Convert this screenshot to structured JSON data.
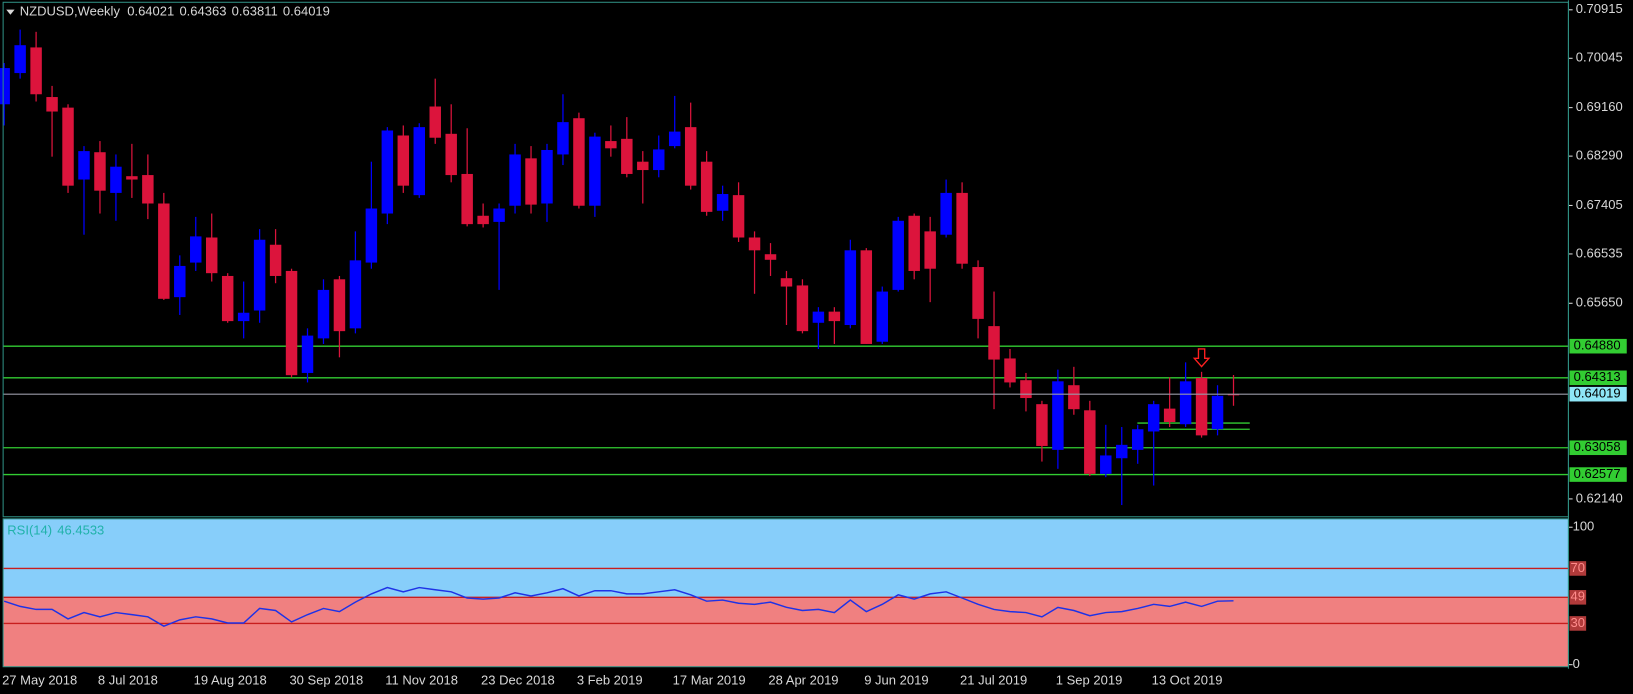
{
  "chart_data": [
    {
      "type": "candlestick",
      "title": "NZDUSD,Weekly",
      "categories": [
        "27 May 2018",
        null,
        null,
        null,
        null,
        null,
        "8 Jul 2018",
        null,
        null,
        null,
        null,
        null,
        "19 Aug 2018",
        null,
        null,
        null,
        null,
        null,
        "30 Sep 2018",
        null,
        null,
        null,
        null,
        null,
        "11 Nov 2018",
        null,
        null,
        null,
        null,
        null,
        "23 Dec 2018",
        null,
        null,
        null,
        null,
        null,
        "3 Feb 2019",
        null,
        null,
        null,
        null,
        null,
        "17 Mar 2019",
        null,
        null,
        null,
        null,
        null,
        "28 Apr 2019",
        null,
        null,
        null,
        null,
        null,
        "9 Jun 2019",
        null,
        null,
        null,
        null,
        null,
        "21 Jul 2019",
        null,
        null,
        null,
        null,
        null,
        "1 Sep 2019",
        null,
        null,
        null,
        null,
        null,
        "13 Oct 2019",
        null,
        null,
        null,
        null,
        null
      ],
      "open": [
        0.6922,
        0.6978,
        0.7024,
        0.6935,
        0.6916,
        0.6787,
        0.6836,
        0.6763,
        0.6793,
        0.6795,
        0.6744,
        0.6576,
        0.6638,
        0.6683,
        0.6614,
        0.6533,
        0.6552,
        0.667,
        0.6623,
        0.644,
        0.6502,
        0.6608,
        0.652,
        0.6638,
        0.6726,
        0.6866,
        0.6759,
        0.6918,
        0.6869,
        0.6797,
        0.6722,
        0.6711,
        0.674,
        0.6825,
        0.6744,
        0.6832,
        0.6897,
        0.674,
        0.6856,
        0.686,
        0.6819,
        0.6804,
        0.6847,
        0.6881,
        0.6819,
        0.6731,
        0.6759,
        0.6683,
        0.6653,
        0.661,
        0.6597,
        0.653,
        0.655,
        0.6526,
        0.666,
        0.6496,
        0.6589,
        0.6722,
        0.6694,
        0.6688,
        0.6763,
        0.663,
        0.6524,
        0.6466,
        0.6427,
        0.6384,
        0.6302,
        0.6418,
        0.6373,
        0.6259,
        0.6287,
        0.6302,
        0.6335,
        0.6376,
        0.6348,
        0.6431,
        0.6339,
        0.64021
      ],
      "high": [
        0.6996,
        0.7056,
        0.7052,
        0.6955,
        0.6922,
        0.6847,
        0.6856,
        0.6832,
        0.6851,
        0.6832,
        0.6763,
        0.6651,
        0.672,
        0.6726,
        0.6619,
        0.6604,
        0.6698,
        0.6698,
        0.6627,
        0.652,
        0.6608,
        0.6614,
        0.6694,
        0.6819,
        0.6881,
        0.6884,
        0.6888,
        0.6968,
        0.6922,
        0.6879,
        0.6744,
        0.6744,
        0.6851,
        0.6847,
        0.6851,
        0.694,
        0.6907,
        0.6871,
        0.6884,
        0.6899,
        0.6838,
        0.6866,
        0.6937,
        0.6925,
        0.6838,
        0.6776,
        0.6782,
        0.6694,
        0.6673,
        0.6623,
        0.6608,
        0.6558,
        0.6558,
        0.6679,
        0.6664,
        0.6595,
        0.672,
        0.6726,
        0.672,
        0.6787,
        0.6782,
        0.6642,
        0.6586,
        0.6483,
        0.644,
        0.639,
        0.6446,
        0.6451,
        0.639,
        0.6347,
        0.6343,
        0.6347,
        0.639,
        0.6432,
        0.6459,
        0.6442,
        0.6418,
        0.64363
      ],
      "low": [
        0.6884,
        0.6968,
        0.6927,
        0.6828,
        0.6763,
        0.6688,
        0.6726,
        0.6713,
        0.6754,
        0.6716,
        0.6571,
        0.6544,
        0.6623,
        0.6604,
        0.653,
        0.6502,
        0.653,
        0.6601,
        0.6432,
        0.6423,
        0.6492,
        0.6468,
        0.6511,
        0.6627,
        0.6707,
        0.6763,
        0.6754,
        0.6851,
        0.6782,
        0.6703,
        0.6701,
        0.6589,
        0.6726,
        0.6726,
        0.6711,
        0.6813,
        0.6735,
        0.672,
        0.6828,
        0.6791,
        0.6744,
        0.6791,
        0.6843,
        0.6769,
        0.6722,
        0.6713,
        0.6675,
        0.6582,
        0.6614,
        0.6526,
        0.6511,
        0.6483,
        0.6492,
        0.652,
        0.6492,
        0.6492,
        0.6586,
        0.6608,
        0.6567,
        0.6683,
        0.6627,
        0.6502,
        0.6375,
        0.6414,
        0.6371,
        0.6281,
        0.6268,
        0.6365,
        0.6255,
        0.6253,
        0.6203,
        0.6277,
        0.6238,
        0.6343,
        0.6343,
        0.6324,
        0.6328,
        0.63811
      ],
      "close": [
        0.6987,
        0.7028,
        0.694,
        0.6909,
        0.6776,
        0.6838,
        0.6767,
        0.681,
        0.6787,
        0.6744,
        0.6573,
        0.6632,
        0.6685,
        0.6619,
        0.6533,
        0.6548,
        0.6679,
        0.6614,
        0.6436,
        0.6507,
        0.6589,
        0.6515,
        0.6642,
        0.6735,
        0.6875,
        0.6776,
        0.6881,
        0.6862,
        0.6795,
        0.6707,
        0.6707,
        0.6735,
        0.6832,
        0.6742,
        0.684,
        0.689,
        0.674,
        0.6864,
        0.6843,
        0.6797,
        0.6804,
        0.6841,
        0.6873,
        0.6776,
        0.6729,
        0.6761,
        0.6683,
        0.666,
        0.6643,
        0.6595,
        0.6515,
        0.655,
        0.6533,
        0.666,
        0.6492,
        0.6586,
        0.6713,
        0.6623,
        0.6627,
        0.6763,
        0.6636,
        0.6537,
        0.6464,
        0.6423,
        0.6395,
        0.6309,
        0.6425,
        0.6375,
        0.6259,
        0.6292,
        0.6311,
        0.6339,
        0.6384,
        0.6352,
        0.6425,
        0.6328,
        0.6399,
        0.64019
      ],
      "up_color": "#0000ff",
      "down_color": "#dc143c",
      "ylim": [
        0.6182,
        0.7105
      ],
      "yticks": [
        0.70915,
        0.70045,
        {
          "value": 0.6916,
          "label": "0.69160"
        },
        {
          "value": 0.6829,
          "label": "0.68290"
        },
        0.67405,
        0.66535,
        {
          "value": 0.6565,
          "label": "0.65650"
        },
        {
          "value": 0.6214,
          "label": "0.62140"
        }
      ],
      "levels": [
        {
          "value": 0.6488,
          "label": "0.64880"
        },
        {
          "value": 0.64313,
          "label": "0.64313"
        },
        {
          "value": 0.63058,
          "label": "0.63058"
        },
        {
          "value": 0.62577,
          "label": "0.62577"
        }
      ],
      "level_color": "#32cd32",
      "short_lines": [
        0.635,
        0.6339
      ],
      "price_line_color": "#9a9aa8",
      "price_label_color": "#8ee6f7"
    },
    {
      "type": "line",
      "title": "RSI(14)",
      "values": [
        46.2,
        42.4,
        40.2,
        40.2,
        33.3,
        37.9,
        34.8,
        37.9,
        36.4,
        34.8,
        28.0,
        32.6,
        34.8,
        33.3,
        30.3,
        30.3,
        40.9,
        39.4,
        31.1,
        36.4,
        40.9,
        38.6,
        45.5,
        51.5,
        56.1,
        53.0,
        56.1,
        54.5,
        53.0,
        48.5,
        47.7,
        48.5,
        52.3,
        50.0,
        52.3,
        55.3,
        50.0,
        53.8,
        53.8,
        51.5,
        51.5,
        53.0,
        54.5,
        50.8,
        46.2,
        47.0,
        44.7,
        43.9,
        45.5,
        41.7,
        39.4,
        40.2,
        37.9,
        47.0,
        38.6,
        43.9,
        50.8,
        47.7,
        51.5,
        53.0,
        48.5,
        43.9,
        40.2,
        38.6,
        37.9,
        34.8,
        41.7,
        39.4,
        35.6,
        37.9,
        38.6,
        40.9,
        43.9,
        42.4,
        45.5,
        42.4,
        46.2,
        46.4533
      ],
      "color": "#1e32e6",
      "ylim": [
        -1.5,
        106.1
      ],
      "yticks": [
        0,
        100
      ],
      "levels": [
        70,
        49,
        30
      ],
      "level_color": "#c81e1e",
      "zone_colors": [
        "#87cefa",
        "#f08080"
      ]
    }
  ]
}
